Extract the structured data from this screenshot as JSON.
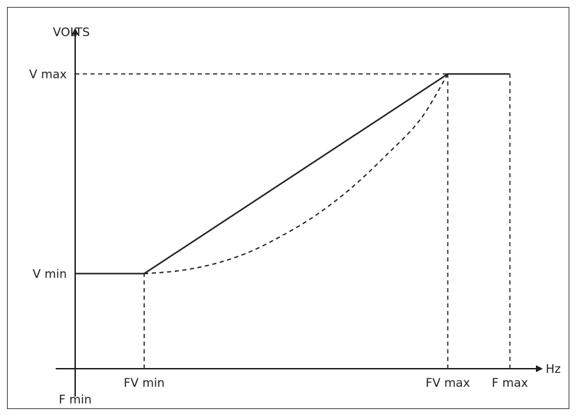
{
  "chart_data": {
    "type": "line",
    "title": "",
    "xlabel": "Hz",
    "ylabel": "VOLTS",
    "x_ticks": [
      "F min",
      "FV min",
      "FV max",
      "F max"
    ],
    "x_tick_values": [
      0,
      1,
      5.4,
      6.3
    ],
    "y_ticks": [
      "V min",
      "V max"
    ],
    "y_tick_values": [
      1,
      3.1
    ],
    "xlim": [
      0,
      7
    ],
    "ylim": [
      0,
      3.6
    ],
    "grid": false,
    "legend": "none",
    "series": [
      {
        "style": "solid",
        "x": [
          0,
          1,
          5.4,
          6.3
        ],
        "y": [
          1,
          1,
          3.1,
          3.1
        ]
      },
      {
        "style": "dashed",
        "x": [
          1,
          1.5,
          2,
          2.5,
          3,
          3.5,
          4,
          4.5,
          5,
          5.4
        ],
        "y": [
          1,
          1.03,
          1.1,
          1.22,
          1.4,
          1.62,
          1.9,
          2.24,
          2.62,
          3.1
        ]
      }
    ],
    "guides": [
      {
        "style": "dashed",
        "from": [
          0,
          3.1
        ],
        "to": [
          5.4,
          3.1
        ]
      },
      {
        "style": "dashed",
        "from": [
          1,
          0
        ],
        "to": [
          1,
          1
        ]
      },
      {
        "style": "dashed",
        "from": [
          5.4,
          0
        ],
        "to": [
          5.4,
          3.1
        ]
      },
      {
        "style": "dashed",
        "from": [
          6.3,
          0
        ],
        "to": [
          6.3,
          3.1
        ]
      }
    ],
    "colors": {
      "line": "#231f20",
      "text": "#231f20",
      "frame": "#333333"
    }
  }
}
